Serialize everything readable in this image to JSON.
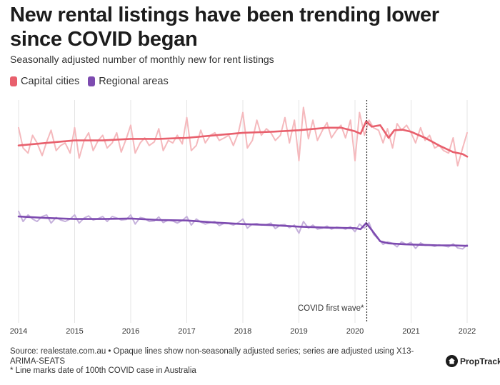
{
  "header": {
    "title": "New rental listings have been trending lower since COVID began",
    "subtitle": "Seasonally adjusted number of monthly new for rent listings"
  },
  "footer": {
    "source": "Source: realestate.com.au • Opaque lines show non-seasonally adjusted series; series are adjusted using X13-ARIMA-SEATS",
    "note": "* Line marks date of 100th COVID case in Australia"
  },
  "brand": {
    "name": "PropTrack",
    "icon": "house-logo-icon"
  },
  "colors": {
    "capital": "#e8606d",
    "capital_raw": "#f5b9bd",
    "regional": "#7d4bb0",
    "regional_raw": "#c6b2dc",
    "grid": "#e4e4e4",
    "annotation": "#222222"
  },
  "chart_data": {
    "type": "line",
    "title": "New rental listings have been trending lower since COVID began",
    "subtitle": "Seasonally adjusted number of monthly new for rent listings",
    "x_ticks": [
      "2014",
      "2015",
      "2016",
      "2017",
      "2018",
      "2019",
      "2020",
      "2021",
      "2022"
    ],
    "xlim": [
      2014,
      2022
    ],
    "y_axis": "hidden (no tick labels)",
    "grid": "vertical lines at each year",
    "legend": "top-left",
    "annotation": {
      "text": "COVID first wave*",
      "x": 2020.21,
      "style": "dotted vertical line"
    },
    "series": [
      {
        "name": "Capital cities",
        "kind": "seasonally adjusted",
        "x": [
          2014.0,
          2014.5,
          2015.0,
          2015.5,
          2016.0,
          2016.5,
          2017.0,
          2017.5,
          2018.0,
          2018.5,
          2019.0,
          2019.5,
          2019.75,
          2020.0,
          2020.1,
          2020.2,
          2020.3,
          2020.45,
          2020.6,
          2020.7,
          2020.85,
          2021.0,
          2021.25,
          2021.5,
          2021.75,
          2021.92,
          2022.0
        ],
        "values": [
          30.5,
          31.0,
          31.5,
          31.5,
          31.8,
          31.8,
          32.0,
          32.5,
          33.0,
          33.2,
          33.5,
          34.0,
          34.0,
          33.3,
          32.8,
          35.3,
          34.2,
          34.5,
          32.0,
          33.5,
          33.6,
          33.2,
          32.0,
          30.5,
          29.2,
          28.8,
          28.3
        ]
      },
      {
        "name": "Regional areas",
        "kind": "seasonally adjusted",
        "x": [
          2014.0,
          2014.5,
          2015.0,
          2015.5,
          2016.0,
          2016.5,
          2017.0,
          2017.5,
          2018.0,
          2018.5,
          2019.0,
          2019.5,
          2020.0,
          2020.1,
          2020.2,
          2020.3,
          2020.45,
          2020.6,
          2020.9,
          2021.2,
          2021.5,
          2021.75,
          2022.0
        ],
        "values": [
          16.5,
          16.2,
          16.0,
          16.0,
          16.1,
          15.8,
          15.7,
          15.3,
          15.0,
          14.8,
          14.5,
          14.3,
          14.2,
          14.0,
          15.2,
          13.8,
          11.6,
          11.2,
          11.0,
          10.9,
          10.8,
          10.8,
          10.7
        ]
      },
      {
        "name": "Capital cities",
        "kind": "non-seasonally adjusted",
        "x": [
          2014.0,
          2014.08,
          2014.17,
          2014.25,
          2014.33,
          2014.42,
          2014.5,
          2014.58,
          2014.67,
          2014.75,
          2014.83,
          2014.92,
          2015.0,
          2015.08,
          2015.17,
          2015.25,
          2015.33,
          2015.42,
          2015.5,
          2015.58,
          2015.67,
          2015.75,
          2015.83,
          2015.92,
          2016.0,
          2016.08,
          2016.17,
          2016.25,
          2016.33,
          2016.42,
          2016.5,
          2016.58,
          2016.67,
          2016.75,
          2016.83,
          2016.92,
          2017.0,
          2017.08,
          2017.17,
          2017.25,
          2017.33,
          2017.42,
          2017.5,
          2017.58,
          2017.67,
          2017.75,
          2017.83,
          2017.92,
          2018.0,
          2018.08,
          2018.17,
          2018.25,
          2018.33,
          2018.42,
          2018.5,
          2018.58,
          2018.67,
          2018.75,
          2018.83,
          2018.92,
          2019.0,
          2019.08,
          2019.17,
          2019.25,
          2019.33,
          2019.42,
          2019.5,
          2019.58,
          2019.67,
          2019.75,
          2019.83,
          2019.92,
          2020.0,
          2020.08,
          2020.17,
          2020.25,
          2020.33,
          2020.42,
          2020.5,
          2020.58,
          2020.67,
          2020.75,
          2020.83,
          2020.92,
          2021.0,
          2021.08,
          2021.17,
          2021.25,
          2021.33,
          2021.42,
          2021.5,
          2021.58,
          2021.67,
          2021.75,
          2021.83,
          2021.92,
          2022.0
        ],
        "values": [
          34.0,
          30.0,
          29.0,
          32.5,
          31.0,
          28.5,
          31.2,
          33.5,
          29.5,
          30.5,
          31.0,
          29.0,
          34.0,
          28.0,
          31.5,
          33.0,
          29.5,
          31.5,
          32.5,
          30.0,
          31.0,
          33.0,
          29.2,
          31.8,
          34.5,
          29.0,
          31.0,
          32.0,
          30.5,
          31.2,
          33.8,
          29.5,
          31.5,
          31.0,
          32.5,
          30.8,
          36.0,
          29.5,
          30.5,
          33.5,
          31.0,
          32.5,
          33.0,
          31.5,
          32.0,
          32.5,
          30.5,
          33.0,
          37.0,
          30.0,
          31.5,
          35.5,
          32.5,
          33.8,
          33.0,
          31.5,
          32.5,
          36.0,
          31.0,
          35.5,
          27.5,
          38.0,
          31.8,
          35.5,
          31.5,
          33.5,
          35.0,
          32.0,
          33.5,
          34.5,
          32.0,
          35.5,
          27.5,
          37.0,
          32.5,
          35.5,
          34.0,
          33.5,
          31.0,
          33.8,
          30.0,
          34.8,
          33.5,
          34.5,
          33.0,
          31.0,
          34.0,
          31.5,
          32.5,
          30.0,
          30.5,
          29.5,
          29.0,
          32.0,
          26.5,
          30.0,
          33.0
        ]
      },
      {
        "name": "Regional areas",
        "kind": "non-seasonally adjusted",
        "x": [
          2014.0,
          2014.08,
          2014.17,
          2014.25,
          2014.33,
          2014.42,
          2014.5,
          2014.58,
          2014.67,
          2014.75,
          2014.83,
          2014.92,
          2015.0,
          2015.08,
          2015.17,
          2015.25,
          2015.33,
          2015.42,
          2015.5,
          2015.58,
          2015.67,
          2015.75,
          2015.83,
          2015.92,
          2016.0,
          2016.08,
          2016.17,
          2016.25,
          2016.33,
          2016.42,
          2016.5,
          2016.58,
          2016.67,
          2016.75,
          2016.83,
          2016.92,
          2017.0,
          2017.08,
          2017.17,
          2017.25,
          2017.33,
          2017.42,
          2017.5,
          2017.58,
          2017.67,
          2017.75,
          2017.83,
          2017.92,
          2018.0,
          2018.08,
          2018.17,
          2018.25,
          2018.33,
          2018.42,
          2018.5,
          2018.58,
          2018.67,
          2018.75,
          2018.83,
          2018.92,
          2019.0,
          2019.08,
          2019.17,
          2019.25,
          2019.33,
          2019.42,
          2019.5,
          2019.58,
          2019.67,
          2019.75,
          2019.83,
          2019.92,
          2020.0,
          2020.08,
          2020.17,
          2020.25,
          2020.33,
          2020.42,
          2020.5,
          2020.58,
          2020.67,
          2020.75,
          2020.83,
          2020.92,
          2021.0,
          2021.08,
          2021.17,
          2021.25,
          2021.33,
          2021.42,
          2021.5,
          2021.58,
          2021.67,
          2021.75,
          2021.83,
          2021.92,
          2022.0
        ],
        "values": [
          17.5,
          15.5,
          16.8,
          16.0,
          15.5,
          16.5,
          16.8,
          15.2,
          16.3,
          15.8,
          15.5,
          16.0,
          16.8,
          15.2,
          16.2,
          16.6,
          15.8,
          16.1,
          16.5,
          15.5,
          16.5,
          16.2,
          15.8,
          15.9,
          16.8,
          15.0,
          16.3,
          16.1,
          15.5,
          15.6,
          16.4,
          15.3,
          15.8,
          15.6,
          15.2,
          15.7,
          16.5,
          14.8,
          16.0,
          15.4,
          15.0,
          15.3,
          15.5,
          14.7,
          15.2,
          15.1,
          14.8,
          15.3,
          16.0,
          14.2,
          15.0,
          15.1,
          14.8,
          14.9,
          15.2,
          14.1,
          14.8,
          14.9,
          14.3,
          14.8,
          13.2,
          15.5,
          14.2,
          14.8,
          14.0,
          14.2,
          14.6,
          14.0,
          14.4,
          14.3,
          14.0,
          14.5,
          13.5,
          15.0,
          14.2,
          15.3,
          13.0,
          12.0,
          11.0,
          11.5,
          11.2,
          10.5,
          11.5,
          11.0,
          11.4,
          10.2,
          11.3,
          10.8,
          10.9,
          10.6,
          10.9,
          10.7,
          10.5,
          11.1,
          10.3,
          10.1,
          10.9
        ]
      }
    ]
  }
}
